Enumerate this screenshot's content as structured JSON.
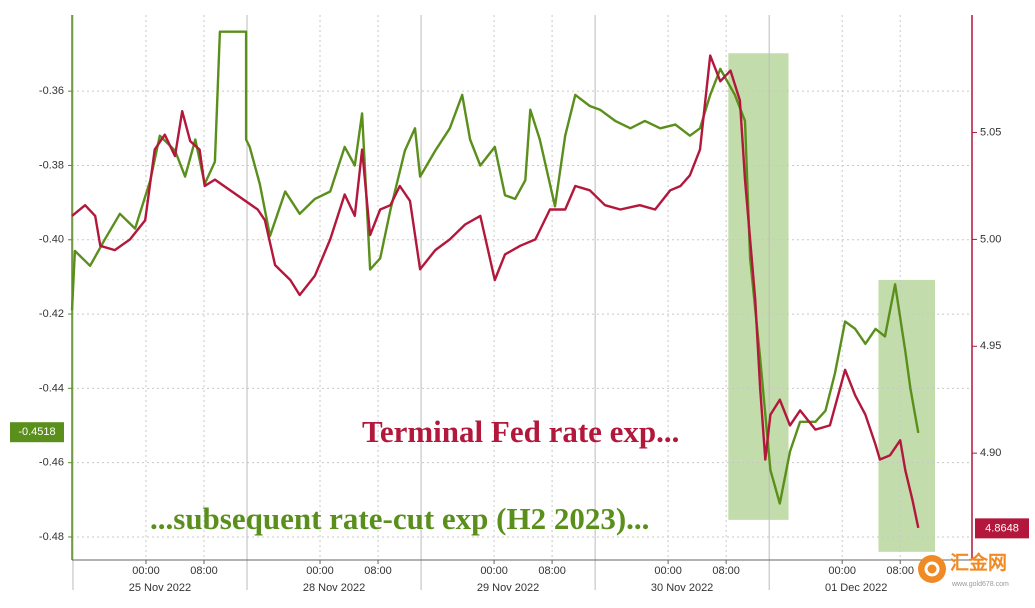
{
  "chart_data": {
    "type": "line",
    "xlim": [
      -10.2,
      113.9
    ],
    "xticks": [
      {
        "value": 0,
        "label": "00:00"
      },
      {
        "value": 8,
        "label": "08:00"
      },
      {
        "value": 24,
        "label": "00:00"
      },
      {
        "value": 32,
        "label": "08:00"
      },
      {
        "value": 48,
        "label": "00:00"
      },
      {
        "value": 56,
        "label": "08:00"
      },
      {
        "value": 72,
        "label": "00:00"
      },
      {
        "value": 80,
        "label": "08:00"
      },
      {
        "value": 96,
        "label": "00:00"
      },
      {
        "value": 104,
        "label": "08:00"
      }
    ],
    "date_ticks": [
      {
        "value": 0,
        "label": "25 Nov 2022"
      },
      {
        "value": 24,
        "label": "28 Nov 2022"
      },
      {
        "value": 48,
        "label": "29 Nov 2022"
      },
      {
        "value": 72,
        "label": "30 Nov 2022"
      },
      {
        "value": 96,
        "label": "01 Dec 2022"
      }
    ],
    "ylim": [
      -0.4862,
      -0.3395
    ],
    "yticks": [
      -0.36,
      -0.38,
      {
        "value": -0.4,
        "label": "-0.40"
      },
      -0.42,
      -0.44,
      -0.46,
      -0.48
    ],
    "y2lim": [
      4.85,
      5.105
    ],
    "y2ticks": [
      5.05,
      {
        "value": 5,
        "label": "5.00"
      },
      4.95,
      {
        "value": 4.9,
        "label": "4.90"
      }
    ],
    "grid": true,
    "series": [
      {
        "name": "...subsequent rate-cut exp (H2 2023)...",
        "color": "#5a8f1c",
        "axis": "y",
        "last_value": -0.4518,
        "x": [
          -10.2,
          -9.8,
          -7.7,
          -5.7,
          -3.6,
          -1.5,
          0.6,
          1.9,
          4.0,
          5.4,
          6.8,
          8.1,
          9.5,
          10.2,
          13.8,
          13.8,
          14.3,
          15.7,
          17.1,
          19.2,
          21.2,
          23.3,
          25.4,
          27.4,
          28.8,
          29.8,
          30.9,
          32.3,
          33.7,
          35.7,
          37.1,
          37.8,
          39.9,
          41.9,
          43.6,
          44.7,
          46.1,
          48.1,
          49.5,
          50.9,
          52.3,
          53.0,
          54.3,
          56.4,
          57.8,
          59.2,
          61.2,
          62.6,
          64.7,
          66.8,
          68.8,
          70.9,
          73.0,
          75.0,
          76.4,
          77.8,
          79.2,
          81.2,
          82.6,
          83.3,
          84.7,
          86.1,
          87.4,
          88.8,
          90.2,
          92.3,
          93.7,
          95.0,
          96.4,
          97.8,
          99.2,
          100.6,
          101.9,
          103.3,
          104.7,
          105.4,
          106.5
        ],
        "values": [
          -0.419,
          -0.403,
          -0.407,
          -0.4,
          -0.393,
          -0.397,
          -0.384,
          -0.372,
          -0.376,
          -0.383,
          -0.373,
          -0.385,
          -0.379,
          -0.344,
          -0.344,
          -0.373,
          -0.375,
          -0.385,
          -0.399,
          -0.387,
          -0.393,
          -0.389,
          -0.387,
          -0.375,
          -0.38,
          -0.366,
          -0.408,
          -0.405,
          -0.392,
          -0.376,
          -0.37,
          -0.383,
          -0.376,
          -0.37,
          -0.361,
          -0.373,
          -0.38,
          -0.375,
          -0.388,
          -0.389,
          -0.384,
          -0.365,
          -0.373,
          -0.391,
          -0.372,
          -0.361,
          -0.364,
          -0.365,
          -0.368,
          -0.37,
          -0.368,
          -0.37,
          -0.369,
          -0.372,
          -0.37,
          -0.361,
          -0.354,
          -0.361,
          -0.368,
          -0.405,
          -0.432,
          -0.462,
          -0.471,
          -0.457,
          -0.449,
          -0.449,
          -0.446,
          -0.436,
          -0.422,
          -0.424,
          -0.428,
          -0.424,
          -0.426,
          -0.412,
          -0.43,
          -0.44,
          -0.452
        ]
      },
      {
        "name": "Terminal Fed rate exp...",
        "color": "#b3173c",
        "axis": "y2",
        "last_value": 4.8648,
        "x": [
          -10.2,
          -8.4,
          -7.0,
          -6.3,
          -4.3,
          -2.2,
          -0.1,
          1.2,
          2.6,
          4.0,
          5.0,
          6.1,
          7.4,
          8.1,
          9.5,
          15.4,
          16.4,
          17.8,
          19.9,
          21.2,
          23.3,
          25.4,
          27.4,
          28.8,
          29.8,
          30.9,
          32.3,
          33.7,
          35.0,
          36.4,
          37.8,
          39.9,
          41.9,
          44.0,
          46.1,
          48.1,
          49.5,
          51.6,
          53.7,
          55.7,
          57.8,
          59.2,
          61.2,
          63.3,
          65.4,
          68.1,
          70.2,
          72.3,
          73.7,
          75.0,
          76.4,
          77.8,
          79.2,
          80.6,
          81.9,
          82.6,
          84.0,
          84.7,
          85.4,
          86.1,
          87.4,
          88.8,
          90.2,
          92.3,
          94.3,
          96.4,
          97.8,
          99.2,
          100.6,
          101.2,
          102.6,
          104.0,
          104.7,
          105.7,
          106.5
        ],
        "values": [
          5.011,
          5.016,
          5.011,
          4.997,
          4.995,
          5.0,
          5.009,
          5.042,
          5.049,
          5.039,
          5.06,
          5.046,
          5.042,
          5.025,
          5.028,
          5.014,
          5.009,
          4.988,
          4.981,
          4.974,
          4.983,
          5.0,
          5.021,
          5.011,
          5.042,
          5.002,
          5.014,
          5.016,
          5.025,
          5.018,
          4.986,
          4.995,
          5.0,
          5.007,
          5.011,
          4.981,
          4.993,
          4.997,
          5.0,
          5.014,
          5.014,
          5.025,
          5.023,
          5.016,
          5.014,
          5.016,
          5.014,
          5.023,
          5.025,
          5.03,
          5.042,
          5.086,
          5.074,
          5.079,
          5.065,
          5.028,
          4.972,
          4.93,
          4.897,
          4.918,
          4.925,
          4.913,
          4.92,
          4.911,
          4.913,
          4.939,
          4.927,
          4.918,
          4.904,
          4.897,
          4.899,
          4.906,
          4.892,
          4.878,
          4.865
        ]
      }
    ],
    "highlights": [
      {
        "x": [
          80.3,
          88.6
        ],
        "y": [
          -0.4754,
          -0.3498
        ]
      },
      {
        "x": [
          101.0,
          108.8
        ],
        "y": [
          -0.484,
          -0.4108
        ]
      }
    ],
    "highlight_color": "#b9d69c"
  },
  "watermark": {
    "name": "汇金网",
    "url": "www.gold678.com"
  }
}
